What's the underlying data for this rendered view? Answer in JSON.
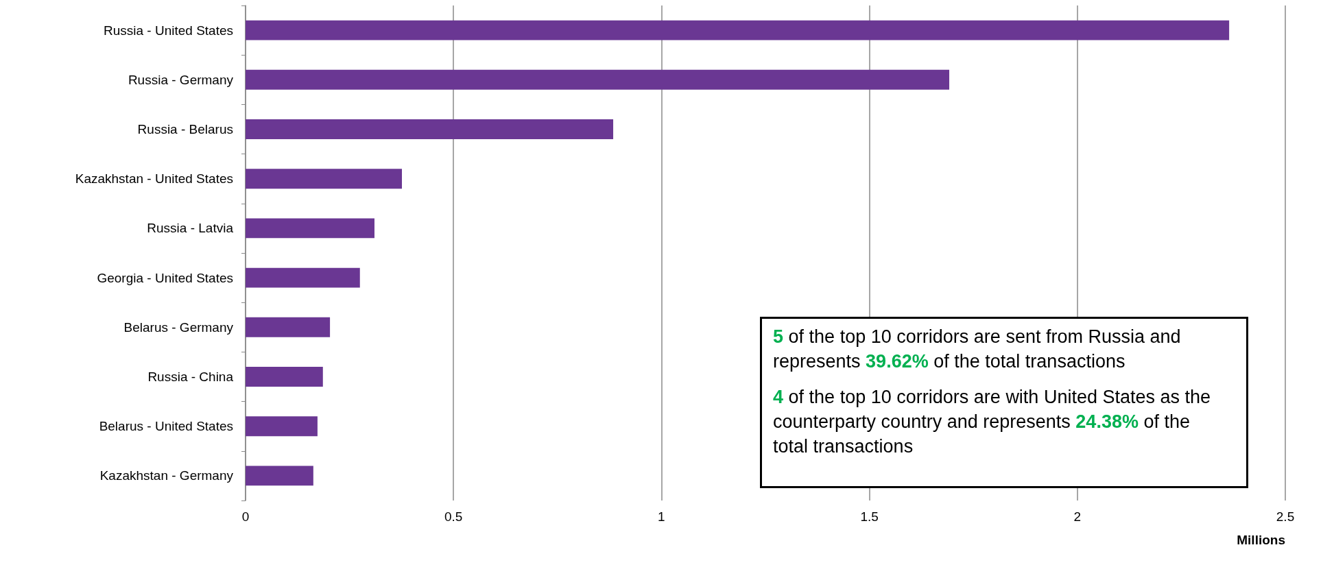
{
  "chart_data": {
    "type": "bar",
    "orientation": "horizontal",
    "xlabel": "Millions",
    "categories": [
      "Russia - United States",
      "Russia - Germany",
      "Russia - Belarus",
      "Kazakhstan - United States",
      "Russia - Latvia",
      "Georgia - United States",
      "Belarus - Germany",
      "Russia - China",
      "Belarus - United States",
      "Kazakhstan - Germany"
    ],
    "values": [
      2.365,
      1.692,
      0.884,
      0.376,
      0.31,
      0.275,
      0.203,
      0.186,
      0.173,
      0.163
    ],
    "color": "#6a3793",
    "xlim": [
      0,
      2.5
    ],
    "xticks": [
      0,
      0.5,
      1,
      1.5,
      2,
      2.5
    ],
    "grid": "x",
    "annotations": [
      "5 of the top 10 corridors are sent from Russia and represents 39.62% of the total transactions",
      "4 of the top 10 corridors are with United States as the counterparty country and represents 24.38% of the total transactions"
    ]
  }
}
